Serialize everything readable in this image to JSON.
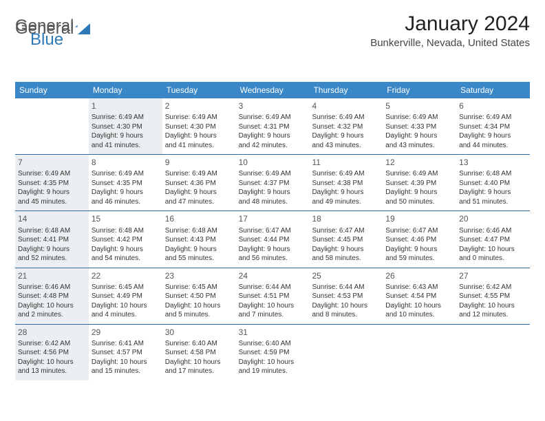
{
  "logo": {
    "part1": "General",
    "part2": "Blue"
  },
  "title": "January 2024",
  "location": "Bunkerville, Nevada, United States",
  "colors": {
    "header_bg": "#3a87c7",
    "header_text": "#ffffff",
    "week_divider": "#2f6a9e",
    "shade_bg": "#eceff1",
    "daynum_color": "#555555",
    "text_color": "#333333",
    "logo_accent": "#2f78b7"
  },
  "day_headers": [
    "Sunday",
    "Monday",
    "Tuesday",
    "Wednesday",
    "Thursday",
    "Friday",
    "Saturday"
  ],
  "weeks": [
    [
      {
        "shade": false
      },
      {
        "num": "1",
        "shade": true,
        "sr": "Sunrise: 6:49 AM",
        "ss": "Sunset: 4:30 PM",
        "dl1": "Daylight: 9 hours",
        "dl2": "and 41 minutes."
      },
      {
        "num": "2",
        "shade": false,
        "sr": "Sunrise: 6:49 AM",
        "ss": "Sunset: 4:30 PM",
        "dl1": "Daylight: 9 hours",
        "dl2": "and 41 minutes."
      },
      {
        "num": "3",
        "shade": false,
        "sr": "Sunrise: 6:49 AM",
        "ss": "Sunset: 4:31 PM",
        "dl1": "Daylight: 9 hours",
        "dl2": "and 42 minutes."
      },
      {
        "num": "4",
        "shade": false,
        "sr": "Sunrise: 6:49 AM",
        "ss": "Sunset: 4:32 PM",
        "dl1": "Daylight: 9 hours",
        "dl2": "and 43 minutes."
      },
      {
        "num": "5",
        "shade": false,
        "sr": "Sunrise: 6:49 AM",
        "ss": "Sunset: 4:33 PM",
        "dl1": "Daylight: 9 hours",
        "dl2": "and 43 minutes."
      },
      {
        "num": "6",
        "shade": false,
        "sr": "Sunrise: 6:49 AM",
        "ss": "Sunset: 4:34 PM",
        "dl1": "Daylight: 9 hours",
        "dl2": "and 44 minutes."
      }
    ],
    [
      {
        "num": "7",
        "shade": true,
        "sr": "Sunrise: 6:49 AM",
        "ss": "Sunset: 4:35 PM",
        "dl1": "Daylight: 9 hours",
        "dl2": "and 45 minutes."
      },
      {
        "num": "8",
        "shade": false,
        "sr": "Sunrise: 6:49 AM",
        "ss": "Sunset: 4:35 PM",
        "dl1": "Daylight: 9 hours",
        "dl2": "and 46 minutes."
      },
      {
        "num": "9",
        "shade": false,
        "sr": "Sunrise: 6:49 AM",
        "ss": "Sunset: 4:36 PM",
        "dl1": "Daylight: 9 hours",
        "dl2": "and 47 minutes."
      },
      {
        "num": "10",
        "shade": false,
        "sr": "Sunrise: 6:49 AM",
        "ss": "Sunset: 4:37 PM",
        "dl1": "Daylight: 9 hours",
        "dl2": "and 48 minutes."
      },
      {
        "num": "11",
        "shade": false,
        "sr": "Sunrise: 6:49 AM",
        "ss": "Sunset: 4:38 PM",
        "dl1": "Daylight: 9 hours",
        "dl2": "and 49 minutes."
      },
      {
        "num": "12",
        "shade": false,
        "sr": "Sunrise: 6:49 AM",
        "ss": "Sunset: 4:39 PM",
        "dl1": "Daylight: 9 hours",
        "dl2": "and 50 minutes."
      },
      {
        "num": "13",
        "shade": false,
        "sr": "Sunrise: 6:48 AM",
        "ss": "Sunset: 4:40 PM",
        "dl1": "Daylight: 9 hours",
        "dl2": "and 51 minutes."
      }
    ],
    [
      {
        "num": "14",
        "shade": true,
        "sr": "Sunrise: 6:48 AM",
        "ss": "Sunset: 4:41 PM",
        "dl1": "Daylight: 9 hours",
        "dl2": "and 52 minutes."
      },
      {
        "num": "15",
        "shade": false,
        "sr": "Sunrise: 6:48 AM",
        "ss": "Sunset: 4:42 PM",
        "dl1": "Daylight: 9 hours",
        "dl2": "and 54 minutes."
      },
      {
        "num": "16",
        "shade": false,
        "sr": "Sunrise: 6:48 AM",
        "ss": "Sunset: 4:43 PM",
        "dl1": "Daylight: 9 hours",
        "dl2": "and 55 minutes."
      },
      {
        "num": "17",
        "shade": false,
        "sr": "Sunrise: 6:47 AM",
        "ss": "Sunset: 4:44 PM",
        "dl1": "Daylight: 9 hours",
        "dl2": "and 56 minutes."
      },
      {
        "num": "18",
        "shade": false,
        "sr": "Sunrise: 6:47 AM",
        "ss": "Sunset: 4:45 PM",
        "dl1": "Daylight: 9 hours",
        "dl2": "and 58 minutes."
      },
      {
        "num": "19",
        "shade": false,
        "sr": "Sunrise: 6:47 AM",
        "ss": "Sunset: 4:46 PM",
        "dl1": "Daylight: 9 hours",
        "dl2": "and 59 minutes."
      },
      {
        "num": "20",
        "shade": false,
        "sr": "Sunrise: 6:46 AM",
        "ss": "Sunset: 4:47 PM",
        "dl1": "Daylight: 10 hours",
        "dl2": "and 0 minutes."
      }
    ],
    [
      {
        "num": "21",
        "shade": true,
        "sr": "Sunrise: 6:46 AM",
        "ss": "Sunset: 4:48 PM",
        "dl1": "Daylight: 10 hours",
        "dl2": "and 2 minutes."
      },
      {
        "num": "22",
        "shade": false,
        "sr": "Sunrise: 6:45 AM",
        "ss": "Sunset: 4:49 PM",
        "dl1": "Daylight: 10 hours",
        "dl2": "and 4 minutes."
      },
      {
        "num": "23",
        "shade": false,
        "sr": "Sunrise: 6:45 AM",
        "ss": "Sunset: 4:50 PM",
        "dl1": "Daylight: 10 hours",
        "dl2": "and 5 minutes."
      },
      {
        "num": "24",
        "shade": false,
        "sr": "Sunrise: 6:44 AM",
        "ss": "Sunset: 4:51 PM",
        "dl1": "Daylight: 10 hours",
        "dl2": "and 7 minutes."
      },
      {
        "num": "25",
        "shade": false,
        "sr": "Sunrise: 6:44 AM",
        "ss": "Sunset: 4:53 PM",
        "dl1": "Daylight: 10 hours",
        "dl2": "and 8 minutes."
      },
      {
        "num": "26",
        "shade": false,
        "sr": "Sunrise: 6:43 AM",
        "ss": "Sunset: 4:54 PM",
        "dl1": "Daylight: 10 hours",
        "dl2": "and 10 minutes."
      },
      {
        "num": "27",
        "shade": false,
        "sr": "Sunrise: 6:42 AM",
        "ss": "Sunset: 4:55 PM",
        "dl1": "Daylight: 10 hours",
        "dl2": "and 12 minutes."
      }
    ],
    [
      {
        "num": "28",
        "shade": true,
        "sr": "Sunrise: 6:42 AM",
        "ss": "Sunset: 4:56 PM",
        "dl1": "Daylight: 10 hours",
        "dl2": "and 13 minutes."
      },
      {
        "num": "29",
        "shade": false,
        "sr": "Sunrise: 6:41 AM",
        "ss": "Sunset: 4:57 PM",
        "dl1": "Daylight: 10 hours",
        "dl2": "and 15 minutes."
      },
      {
        "num": "30",
        "shade": false,
        "sr": "Sunrise: 6:40 AM",
        "ss": "Sunset: 4:58 PM",
        "dl1": "Daylight: 10 hours",
        "dl2": "and 17 minutes."
      },
      {
        "num": "31",
        "shade": false,
        "sr": "Sunrise: 6:40 AM",
        "ss": "Sunset: 4:59 PM",
        "dl1": "Daylight: 10 hours",
        "dl2": "and 19 minutes."
      },
      {
        "shade": false
      },
      {
        "shade": false
      },
      {
        "shade": false
      }
    ]
  ]
}
